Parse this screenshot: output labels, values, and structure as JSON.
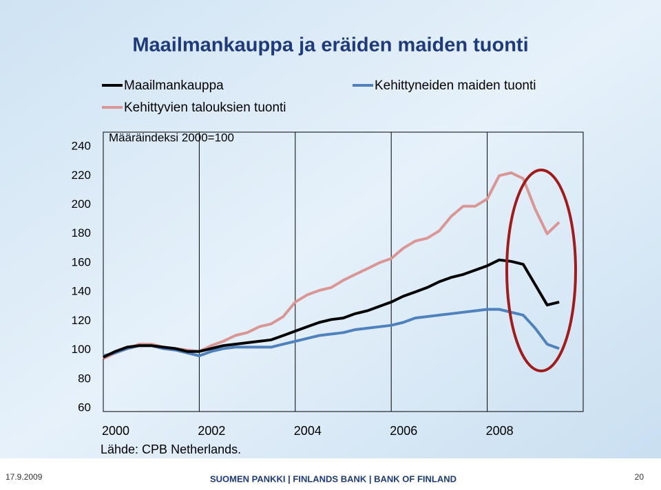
{
  "title": "Maailmankauppa ja eräiden maiden tuonti",
  "footer": {
    "date": "17.9.2009",
    "organization": "SUOMEN PANKKI | FINLANDS BANK | BANK OF FINLAND",
    "page": "20"
  },
  "chart_data": {
    "type": "line",
    "subtitle": "Määräindeksi 2000=100",
    "source": "Lähde: CPB Netherlands.",
    "x": [
      2000.0,
      2000.25,
      2000.5,
      2000.75,
      2001.0,
      2001.25,
      2001.5,
      2001.75,
      2002.0,
      2002.25,
      2002.5,
      2002.75,
      2003.0,
      2003.25,
      2003.5,
      2003.75,
      2004.0,
      2004.25,
      2004.5,
      2004.75,
      2005.0,
      2005.25,
      2005.5,
      2005.75,
      2006.0,
      2006.25,
      2006.5,
      2006.75,
      2007.0,
      2007.25,
      2007.5,
      2007.75,
      2008.0,
      2008.25,
      2008.5,
      2008.75,
      2009.0,
      2009.25,
      2009.5
    ],
    "series": [
      {
        "name": "Maailmankauppa",
        "color": "#000000",
        "values": [
          95,
          99,
          102,
          103,
          103,
          102,
          101,
          99,
          99,
          101,
          103,
          104,
          105,
          106,
          107,
          110,
          113,
          116,
          119,
          121,
          122,
          125,
          127,
          130,
          133,
          137,
          140,
          143,
          147,
          150,
          152,
          155,
          158,
          162,
          161,
          159,
          145,
          131,
          133
        ]
      },
      {
        "name": "Kehittyneiden maiden tuonti",
        "color": "#4f81bd",
        "values": [
          96,
          98,
          101,
          103,
          103,
          101,
          100,
          98,
          96,
          99,
          101,
          102,
          102,
          102,
          102,
          104,
          106,
          108,
          110,
          111,
          112,
          114,
          115,
          116,
          117,
          119,
          122,
          123,
          124,
          125,
          126,
          127,
          128,
          128,
          126,
          124,
          115,
          104,
          101
        ]
      },
      {
        "name": "Kehittyvien talouksien tuonti",
        "color": "#d99694",
        "values": [
          94,
          98,
          101,
          104,
          104,
          102,
          101,
          100,
          99,
          103,
          106,
          110,
          112,
          116,
          118,
          123,
          133,
          138,
          141,
          143,
          148,
          152,
          156,
          160,
          163,
          170,
          175,
          177,
          182,
          192,
          199,
          199,
          204,
          220,
          222,
          218,
          197,
          180,
          188
        ]
      }
    ],
    "xlim": [
      2000,
      2010
    ],
    "xticks": [
      2000,
      2002,
      2004,
      2006,
      2008
    ],
    "ylim": [
      60,
      250
    ],
    "yticks": [
      60,
      80,
      100,
      120,
      140,
      160,
      180,
      200,
      220,
      240
    ],
    "grid": "x"
  }
}
